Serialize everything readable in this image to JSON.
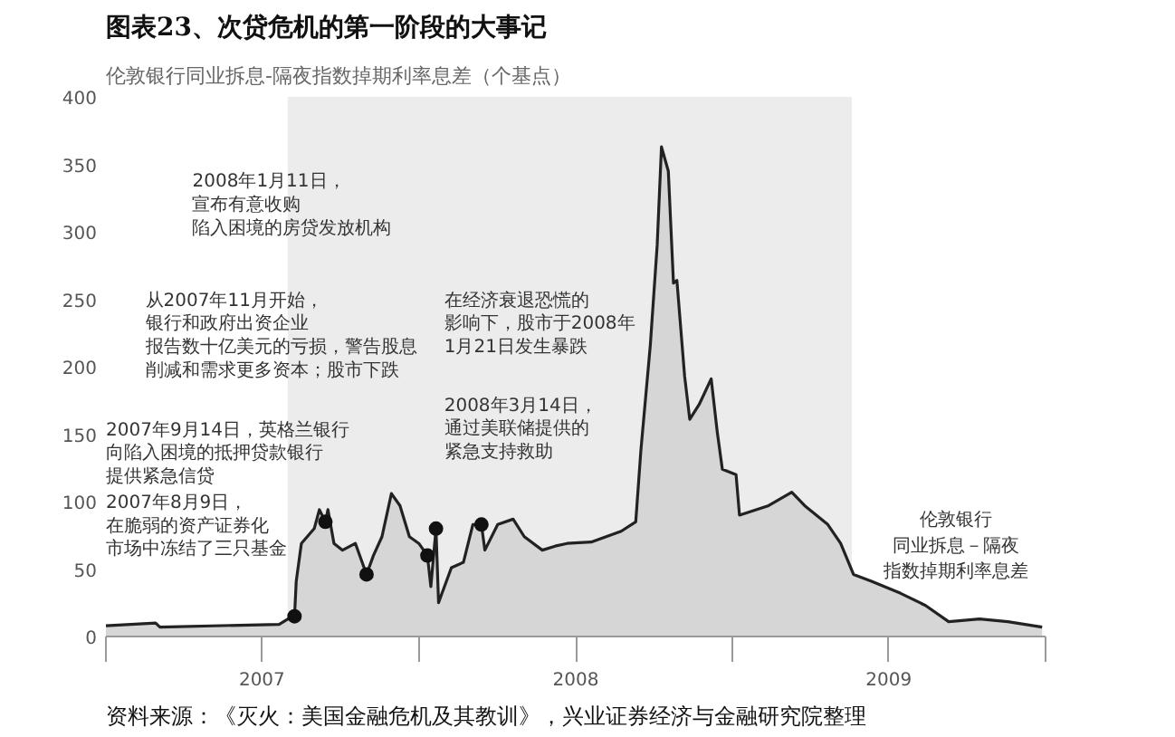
{
  "chart_data": {
    "type": "area",
    "title": "图表23、次贷危机的第一阶段的大事记",
    "subtitle": "伦敦银行同业拆息-隔夜指数掉期利率息差（个基点）",
    "ylim": [
      0,
      400
    ],
    "yticks": [
      0,
      50,
      100,
      150,
      200,
      250,
      300,
      350,
      400
    ],
    "xlim": [
      "2007-01-01",
      "2010-01-01"
    ],
    "xticks": [
      {
        "value": "2007-01-01",
        "label": null
      },
      {
        "value": "2007-07-02",
        "label": "2007"
      },
      {
        "value": "2008-01-01",
        "label": null
      },
      {
        "value": "2008-07-02",
        "label": "2008"
      },
      {
        "value": "2009-01-01",
        "label": null
      },
      {
        "value": "2009-07-02",
        "label": "2009"
      },
      {
        "value": "2010-01-01",
        "label": null
      }
    ],
    "grid": false,
    "bands": [
      {
        "axis": "x",
        "from": "2007-08-01",
        "to": "2009-05-20",
        "color": "#ececec"
      }
    ],
    "series": [
      {
        "name": "伦敦银行同业拆息－隔夜指数掉期利率息差",
        "color": "#222222",
        "x": [
          "2007-01-01",
          "2007-02-28",
          "2007-03-05",
          "2007-07-22",
          "2007-08-04",
          "2007-08-09",
          "2007-08-11",
          "2007-08-17",
          "2007-09-01",
          "2007-09-07",
          "2007-09-14",
          "2007-09-17",
          "2007-09-24",
          "2007-10-04",
          "2007-10-19",
          "2007-11-01",
          "2007-11-09",
          "2007-11-19",
          "2007-11-30",
          "2007-12-10",
          "2007-12-21",
          "2008-01-01",
          "2008-01-11",
          "2008-01-15",
          "2008-01-21",
          "2008-01-24",
          "2008-01-28",
          "2008-02-08",
          "2008-02-22",
          "2008-03-04",
          "2008-03-14",
          "2008-03-18",
          "2008-04-02",
          "2008-04-20",
          "2008-05-03",
          "2008-05-24",
          "2008-06-08",
          "2008-06-22",
          "2008-07-20",
          "2008-08-24",
          "2008-09-10",
          "2008-09-16",
          "2008-09-27",
          "2008-10-05",
          "2008-10-10",
          "2008-10-18",
          "2008-10-24",
          "2008-10-28",
          "2008-11-06",
          "2008-11-12",
          "2008-11-23",
          "2008-12-07",
          "2008-12-14",
          "2008-12-20",
          "2009-01-05",
          "2009-01-09",
          "2009-02-12",
          "2009-03-11",
          "2009-03-26",
          "2009-04-22",
          "2009-05-07",
          "2009-05-22",
          "2009-06-12",
          "2009-07-16",
          "2009-08-14",
          "2009-09-10",
          "2009-10-16",
          "2009-11-18",
          "2009-12-28"
        ],
        "values": [
          8,
          10,
          7,
          9,
          14,
          15,
          41,
          69,
          80,
          94,
          85,
          94,
          69,
          64,
          69,
          46,
          60,
          74,
          106,
          97,
          74,
          69,
          60,
          37,
          80,
          25,
          32,
          51,
          55,
          83,
          83,
          64,
          83,
          87,
          74,
          64,
          67,
          69,
          70,
          78,
          85,
          138,
          216,
          290,
          363,
          345,
          262,
          264,
          193,
          161,
          172,
          191,
          152,
          124,
          120,
          90,
          97,
          107,
          97,
          83,
          69,
          46,
          41,
          32,
          23,
          11,
          13,
          11,
          7
        ]
      },
      {
        "type": "scatter",
        "color": "#111111",
        "marker": "circle",
        "x": [
          "2007-08-09",
          "2007-09-14",
          "2007-11-01",
          "2008-01-11",
          "2008-01-21",
          "2008-03-14"
        ],
        "values": [
          15,
          85,
          46,
          60,
          80,
          83
        ]
      }
    ],
    "annotations": [
      "2008年1月11日，",
      "宣布有意收购",
      "陷入困境的房贷发放机构",
      "从2007年11月开始，",
      "银行和政府出资企业",
      "报告数十亿美元的亏损，警告股息",
      "削减和需求更多资本；股市下跌",
      "在经济衰退恐慌的",
      "影响下，股市于2008年",
      "1月21日发生暴跌",
      "2008年3月14日，",
      "通过美联储提供的",
      "紧急支持救助",
      "2007年9月14日，英格兰银行",
      "向陷入困境的抵押贷款银行",
      "提供紧急信贷",
      "2007年8月9日，",
      "在脆弱的资产证券化",
      "市场中冻结了三只基金",
      "资料来源：《灭火：美国金融危机及其教训》，兴业证券经济与金融研究院整理"
    ]
  }
}
